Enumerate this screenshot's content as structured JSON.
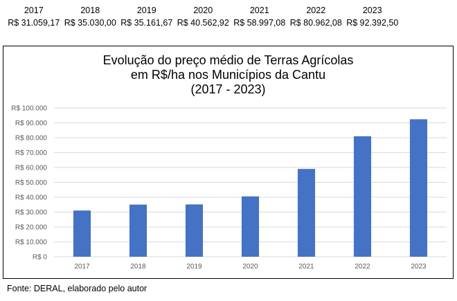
{
  "price_table": {
    "years": [
      "2017",
      "2018",
      "2019",
      "2020",
      "2021",
      "2022",
      "2023"
    ],
    "prices": [
      "R$ 31.059,17",
      "R$ 35.030,00",
      "R$ 35.161,67",
      "R$ 40.562,92",
      "R$ 58.997,08",
      "R$ 80.962,08",
      "R$ 92.392,50"
    ]
  },
  "chart_data": {
    "type": "bar",
    "title_lines": [
      "Evolução do preço médio de Terras Agrícolas",
      "em R$/ha nos Municípios da Cantu",
      "(2017 - 2023)"
    ],
    "categories": [
      "2017",
      "2018",
      "2019",
      "2020",
      "2021",
      "2022",
      "2023"
    ],
    "values": [
      31059.17,
      35030.0,
      35161.67,
      40562.92,
      58997.08,
      80962.08,
      92392.5
    ],
    "ylim": [
      0,
      100000
    ],
    "yticks": [
      0,
      10000,
      20000,
      30000,
      40000,
      50000,
      60000,
      70000,
      80000,
      90000,
      100000
    ],
    "ytick_labels": [
      "R$ 0",
      "R$ 10.000",
      "R$ 20.000",
      "R$ 30.000",
      "R$ 40.000",
      "R$ 50.000",
      "R$ 60.000",
      "R$ 70.000",
      "R$ 80.000",
      "R$ 90.000",
      "R$ 100.000"
    ],
    "grid": true,
    "legend": "none",
    "bar_color": "#4472C4",
    "grid_color": "#D9D9D9"
  },
  "source_note": "Fonte: DERAL, elaborado pelo autor"
}
